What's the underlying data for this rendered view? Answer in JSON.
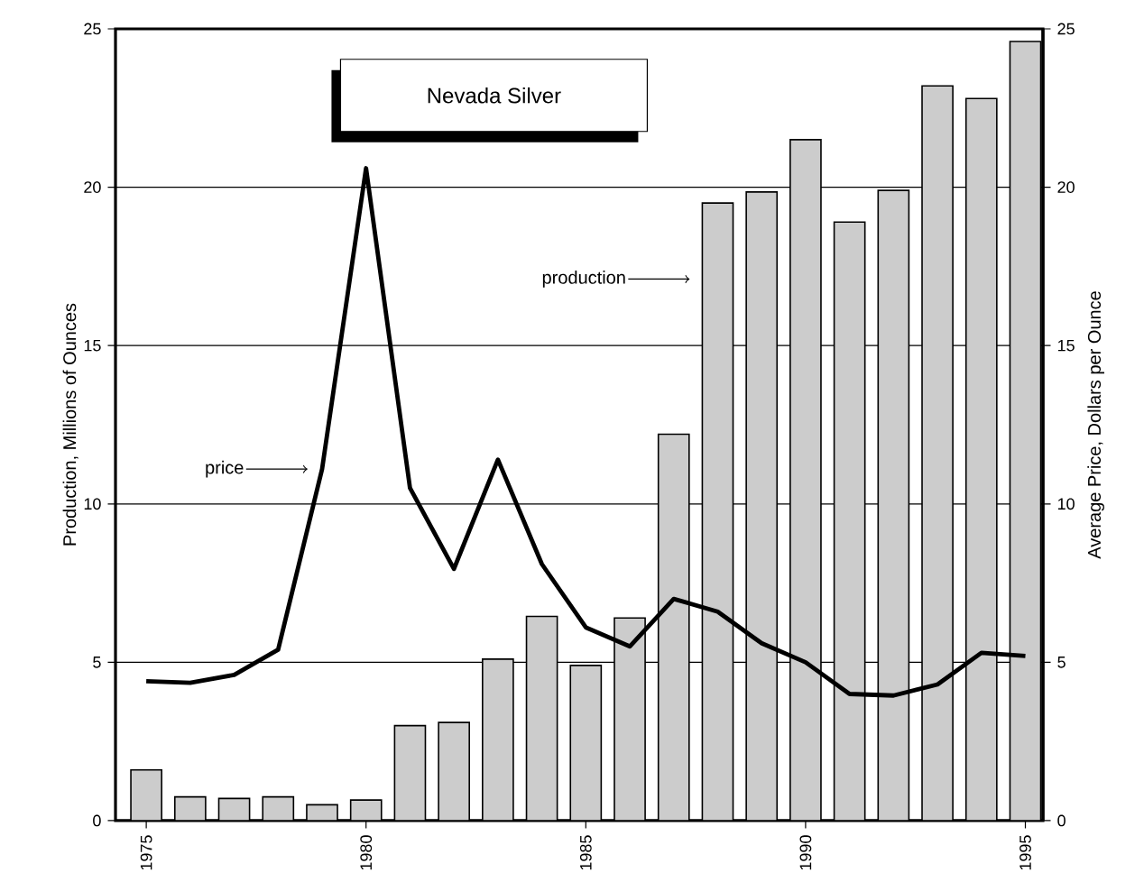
{
  "chart_data": {
    "type": "bar",
    "title": "Nevada Silver",
    "ylabel": "Production,  Millions of Ounces",
    "y2label": "Average Price,  Dollars per Ounce",
    "x": [
      1975,
      1976,
      1977,
      1978,
      1979,
      1980,
      1981,
      1982,
      1983,
      1984,
      1985,
      1986,
      1987,
      1988,
      1989,
      1990,
      1991,
      1992,
      1993,
      1994,
      1995
    ],
    "xlim": [
      1974.3,
      1995.4
    ],
    "xticks": [
      1975,
      1980,
      1985,
      1990,
      1995
    ],
    "ylim": [
      0,
      25
    ],
    "yticks": [
      0,
      5,
      10,
      15,
      20,
      25
    ],
    "y2lim": [
      0,
      25
    ],
    "y2ticks": [
      0,
      5,
      10,
      15,
      20,
      25
    ],
    "grid": "y",
    "series": [
      {
        "color": "#cccccc",
        "values": [
          1.6,
          0.75,
          0.7,
          0.75,
          0.5,
          0.65,
          3.0,
          3.1,
          5.1,
          6.45,
          4.9,
          6.4,
          12.2,
          19.5,
          19.85,
          21.5,
          18.9,
          19.9,
          23.2,
          22.8,
          24.6
        ]
      },
      {
        "type": "line",
        "axis": "y2",
        "color": "#000000",
        "values": [
          4.4,
          4.35,
          4.6,
          5.4,
          11.1,
          20.6,
          10.5,
          7.95,
          11.4,
          8.1,
          6.1,
          5.5,
          7.0,
          6.6,
          5.6,
          5.0,
          4.0,
          3.95,
          4.3,
          5.3,
          5.2
        ]
      }
    ],
    "annotations": [
      "price",
      "production"
    ]
  }
}
